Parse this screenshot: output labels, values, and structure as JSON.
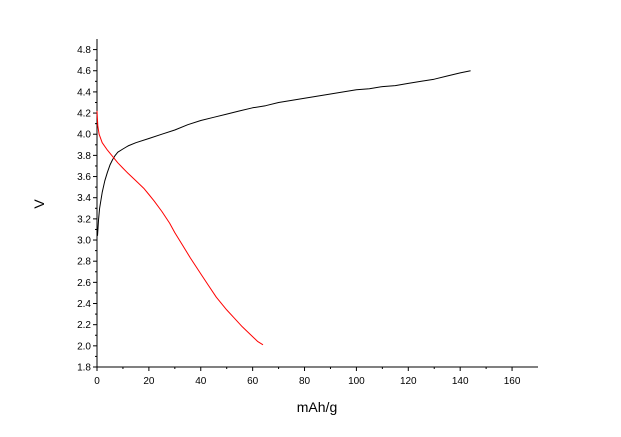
{
  "chart_data": {
    "type": "line",
    "xlabel": "mAh/g",
    "ylabel": "V",
    "xlim": [
      0,
      170
    ],
    "ylim": [
      1.8,
      4.9
    ],
    "x_ticks": [
      0,
      20,
      40,
      60,
      80,
      100,
      120,
      140,
      160
    ],
    "y_ticks": [
      1.8,
      2.0,
      2.2,
      2.4,
      2.6,
      2.8,
      3.0,
      3.2,
      3.4,
      3.6,
      3.8,
      4.0,
      4.2,
      4.4,
      4.6,
      4.8
    ],
    "grid": false,
    "series": [
      {
        "color": "#000000",
        "points": [
          [
            0.2,
            3.04
          ],
          [
            0.6,
            3.2
          ],
          [
            1,
            3.3
          ],
          [
            2,
            3.45
          ],
          [
            3,
            3.56
          ],
          [
            4,
            3.64
          ],
          [
            5,
            3.71
          ],
          [
            6,
            3.76
          ],
          [
            7,
            3.8
          ],
          [
            8,
            3.83
          ],
          [
            10,
            3.86
          ],
          [
            12,
            3.89
          ],
          [
            15,
            3.92
          ],
          [
            20,
            3.96
          ],
          [
            25,
            4.0
          ],
          [
            30,
            4.04
          ],
          [
            35,
            4.09
          ],
          [
            40,
            4.13
          ],
          [
            45,
            4.16
          ],
          [
            50,
            4.19
          ],
          [
            55,
            4.22
          ],
          [
            60,
            4.25
          ],
          [
            65,
            4.27
          ],
          [
            70,
            4.3
          ],
          [
            75,
            4.32
          ],
          [
            80,
            4.34
          ],
          [
            85,
            4.36
          ],
          [
            90,
            4.38
          ],
          [
            95,
            4.4
          ],
          [
            100,
            4.42
          ],
          [
            105,
            4.43
          ],
          [
            110,
            4.45
          ],
          [
            115,
            4.46
          ],
          [
            120,
            4.48
          ],
          [
            125,
            4.5
          ],
          [
            130,
            4.52
          ],
          [
            135,
            4.55
          ],
          [
            140,
            4.58
          ],
          [
            144,
            4.6
          ]
        ]
      },
      {
        "color": "#ff0000",
        "points": [
          [
            0,
            4.22
          ],
          [
            0.3,
            4.08
          ],
          [
            0.8,
            4.0
          ],
          [
            2,
            3.92
          ],
          [
            4,
            3.85
          ],
          [
            6,
            3.79
          ],
          [
            8,
            3.73
          ],
          [
            10,
            3.68
          ],
          [
            12,
            3.63
          ],
          [
            15,
            3.56
          ],
          [
            18,
            3.49
          ],
          [
            20,
            3.43
          ],
          [
            22,
            3.37
          ],
          [
            25,
            3.27
          ],
          [
            28,
            3.16
          ],
          [
            30,
            3.07
          ],
          [
            33,
            2.95
          ],
          [
            36,
            2.83
          ],
          [
            40,
            2.68
          ],
          [
            43,
            2.57
          ],
          [
            46,
            2.46
          ],
          [
            50,
            2.34
          ],
          [
            53,
            2.26
          ],
          [
            56,
            2.18
          ],
          [
            59,
            2.11
          ],
          [
            62,
            2.04
          ],
          [
            64,
            2.01
          ]
        ]
      }
    ]
  }
}
